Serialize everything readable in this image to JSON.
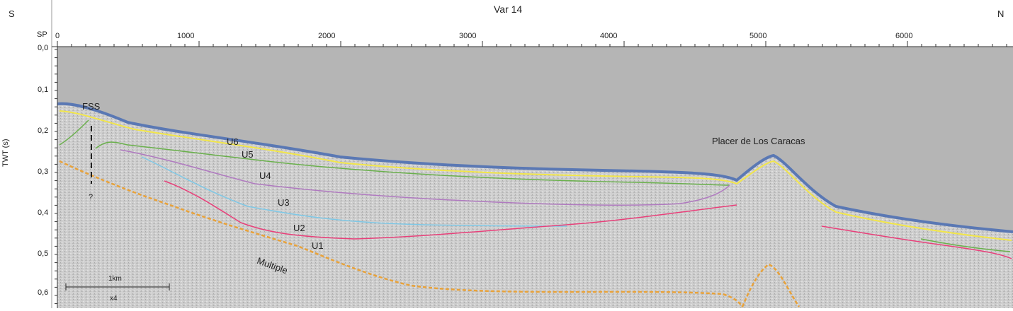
{
  "title": "Var 14",
  "directions": {
    "left": "S",
    "right": "N"
  },
  "shotpoint_axis": {
    "label": "SP",
    "ticks": [
      "0",
      "1000",
      "2000",
      "3000",
      "4000",
      "5000",
      "6000"
    ]
  },
  "twt_axis": {
    "label": "TWT (s)",
    "ticks": [
      "0,0",
      "0,1",
      "0,2",
      "0,3",
      "0,4",
      "0,5",
      "0,6"
    ]
  },
  "annotations": {
    "fss": "FSS",
    "question": "?",
    "placer": "Placer de Los Caracas",
    "multiple": "Multiple"
  },
  "units": [
    "U6",
    "U5",
    "U4",
    "U3",
    "U2",
    "U1"
  ],
  "scale_bar": {
    "length": "1km",
    "exaggeration": "x4"
  },
  "colors": {
    "seafloor": "#5a78b4",
    "U6": "#f2e64a",
    "U5": "#6ab04c",
    "U4": "#b07ac0",
    "U3": "#7fc8e6",
    "U2": "#e8407a",
    "multiple": "#e8a23a",
    "water": "#b5b5b5",
    "sediment": "#c8c8c8"
  }
}
